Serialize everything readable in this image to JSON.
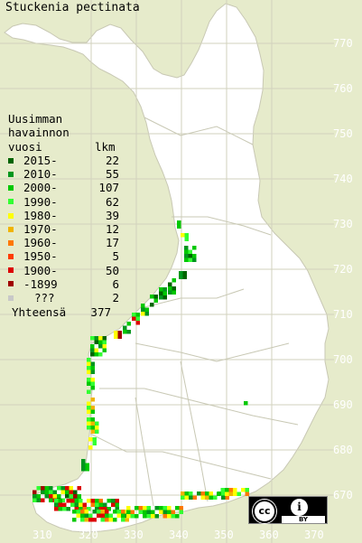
{
  "title": "Stuckenia pectinata",
  "legend": {
    "header": [
      "Uusimman",
      "havainnon",
      "vuosi"
    ],
    "count_header": "lkm",
    "items": [
      {
        "label": "2015-",
        "count": "22",
        "color": "#006400"
      },
      {
        "label": "2010-",
        "count": "55",
        "color": "#00961e"
      },
      {
        "label": "2000-",
        "count": "107",
        "color": "#00c800"
      },
      {
        "label": "1990-",
        "count": "62",
        "color": "#32ff32"
      },
      {
        "label": "1980-",
        "count": "39",
        "color": "#ffff00"
      },
      {
        "label": "1970-",
        "count": "12",
        "color": "#f0b400"
      },
      {
        "label": "1960-",
        "count": "17",
        "color": "#ff7800"
      },
      {
        "label": "1950-",
        "count": "5",
        "color": "#ff3c00"
      },
      {
        "label": "1900-",
        "count": "50",
        "color": "#dc0000"
      },
      {
        "label": "-1899",
        "count": "6",
        "color": "#a00000"
      },
      {
        "label": "???",
        "count": "2",
        "color": "#c8c8c8"
      }
    ],
    "total_label": "Yhteensä",
    "total": "377"
  },
  "y_ticks": [
    "770",
    "760",
    "750",
    "740",
    "730",
    "720",
    "710",
    "700",
    "690",
    "680",
    "670"
  ],
  "x_ticks": [
    "310",
    "320",
    "330",
    "340",
    "350",
    "360",
    "370"
  ],
  "license": {
    "cc": "cc",
    "by": "BY"
  },
  "colors": {
    "background": "#e6ebcb",
    "land": "#ffffff",
    "grid": "#d2d2be",
    "border": "#c8c8b4"
  }
}
